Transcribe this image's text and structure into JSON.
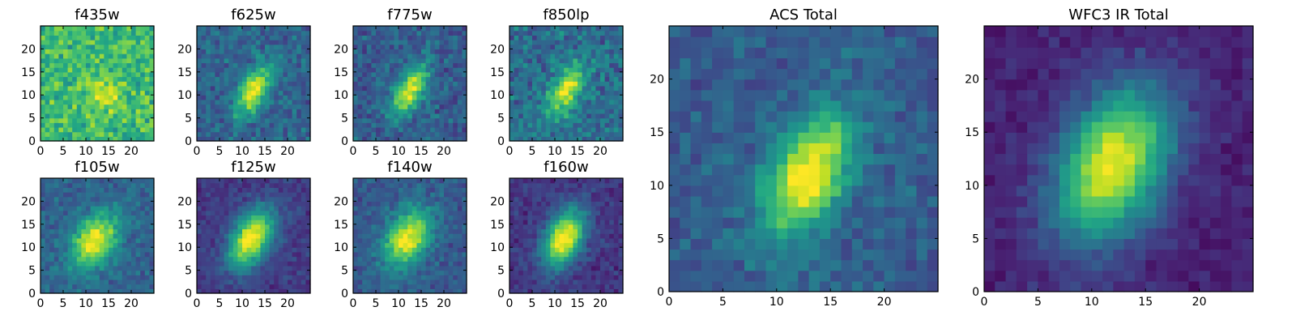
{
  "chart_data": [
    {
      "type": "heatmap",
      "title": "f435w",
      "xlim": [
        0,
        25
      ],
      "ylim": [
        0,
        25
      ],
      "xticks": [
        "0",
        "5",
        "10",
        "15",
        "20"
      ],
      "yticks": [
        "0",
        "5",
        "10",
        "15",
        "20"
      ],
      "colormap": "viridis",
      "source": {
        "center": [
          14.5,
          10
        ],
        "sigma": [
          2.8,
          2.2
        ],
        "angle": -40,
        "amp": 0.25,
        "base": 0.68,
        "noise": 0.22
      }
    },
    {
      "type": "heatmap",
      "title": "f625w",
      "xlim": [
        0,
        25
      ],
      "ylim": [
        0,
        25
      ],
      "xticks": [
        "0",
        "5",
        "10",
        "15",
        "20"
      ],
      "yticks": [
        "0",
        "5",
        "10",
        "15",
        "20"
      ],
      "colormap": "viridis",
      "source": {
        "center": [
          12.5,
          11
        ],
        "sigma": [
          2.0,
          4.2
        ],
        "angle": -30,
        "amp": 0.68,
        "base": 0.32,
        "noise": 0.17
      }
    },
    {
      "type": "heatmap",
      "title": "f775w",
      "xlim": [
        0,
        25
      ],
      "ylim": [
        0,
        25
      ],
      "xticks": [
        "0",
        "5",
        "10",
        "15",
        "20"
      ],
      "yticks": [
        "0",
        "5",
        "10",
        "15",
        "20"
      ],
      "colormap": "viridis",
      "source": {
        "center": [
          12.5,
          11
        ],
        "sigma": [
          2.0,
          4.2
        ],
        "angle": -30,
        "amp": 0.7,
        "base": 0.3,
        "noise": 0.17
      }
    },
    {
      "type": "heatmap",
      "title": "f850lp",
      "xlim": [
        0,
        25
      ],
      "ylim": [
        0,
        25
      ],
      "xticks": [
        "0",
        "5",
        "10",
        "15",
        "20"
      ],
      "yticks": [
        "0",
        "5",
        "10",
        "15",
        "20"
      ],
      "colormap": "viridis",
      "source": {
        "center": [
          12.5,
          11
        ],
        "sigma": [
          2.1,
          4.2
        ],
        "angle": -30,
        "amp": 0.62,
        "base": 0.36,
        "noise": 0.2
      }
    },
    {
      "type": "heatmap",
      "title": "f105w",
      "xlim": [
        0,
        25
      ],
      "ylim": [
        0,
        25
      ],
      "xticks": [
        "0",
        "5",
        "10",
        "15",
        "20"
      ],
      "yticks": [
        "0",
        "5",
        "10",
        "15",
        "20"
      ],
      "colormap": "viridis",
      "source": {
        "center": [
          12,
          11.5
        ],
        "sigma": [
          3.0,
          4.5
        ],
        "angle": -35,
        "amp": 0.7,
        "base": 0.32,
        "noise": 0.13
      }
    },
    {
      "type": "heatmap",
      "title": "f125w",
      "xlim": [
        0,
        25
      ],
      "ylim": [
        0,
        25
      ],
      "xticks": [
        "0",
        "5",
        "10",
        "15",
        "20"
      ],
      "yticks": [
        "0",
        "5",
        "10",
        "15",
        "20"
      ],
      "colormap": "viridis",
      "source": {
        "center": [
          12,
          12
        ],
        "sigma": [
          2.8,
          4.8
        ],
        "angle": -30,
        "amp": 0.85,
        "base": 0.18,
        "noise": 0.11
      }
    },
    {
      "type": "heatmap",
      "title": "f140w",
      "xlim": [
        0,
        25
      ],
      "ylim": [
        0,
        25
      ],
      "xticks": [
        "0",
        "5",
        "10",
        "15",
        "20"
      ],
      "yticks": [
        "0",
        "5",
        "10",
        "15",
        "20"
      ],
      "colormap": "viridis",
      "source": {
        "center": [
          12,
          12
        ],
        "sigma": [
          3.0,
          4.8
        ],
        "angle": -30,
        "amp": 0.72,
        "base": 0.28,
        "noise": 0.13
      }
    },
    {
      "type": "heatmap",
      "title": "f160w",
      "xlim": [
        0,
        25
      ],
      "ylim": [
        0,
        25
      ],
      "xticks": [
        "0",
        "5",
        "10",
        "15",
        "20"
      ],
      "yticks": [
        "0",
        "5",
        "10",
        "15",
        "20"
      ],
      "colormap": "viridis",
      "source": {
        "center": [
          12,
          12
        ],
        "sigma": [
          2.8,
          4.8
        ],
        "angle": -25,
        "amp": 0.85,
        "base": 0.16,
        "noise": 0.11
      }
    },
    {
      "type": "heatmap",
      "title": "ACS Total",
      "xlim": [
        0,
        25
      ],
      "ylim": [
        0,
        25
      ],
      "xticks": [
        "0",
        "5",
        "10",
        "15",
        "20"
      ],
      "yticks": [
        "0",
        "5",
        "10",
        "15",
        "20"
      ],
      "colormap": "viridis",
      "source": {
        "center": [
          13,
          11
        ],
        "sigma": [
          2.3,
          4.3
        ],
        "angle": -30,
        "amp": 0.72,
        "base": 0.3,
        "noise": 0.13
      }
    },
    {
      "type": "heatmap",
      "title": "WFC3 IR Total",
      "xlim": [
        0,
        25
      ],
      "ylim": [
        0,
        25
      ],
      "xticks": [
        "0",
        "5",
        "10",
        "15",
        "20"
      ],
      "yticks": [
        "0",
        "5",
        "10",
        "15",
        "20"
      ],
      "colormap": "viridis",
      "source": {
        "center": [
          12,
          12
        ],
        "sigma": [
          3.3,
          5.3
        ],
        "angle": -25,
        "amp": 0.88,
        "base": 0.1,
        "noise": 0.08
      }
    }
  ]
}
